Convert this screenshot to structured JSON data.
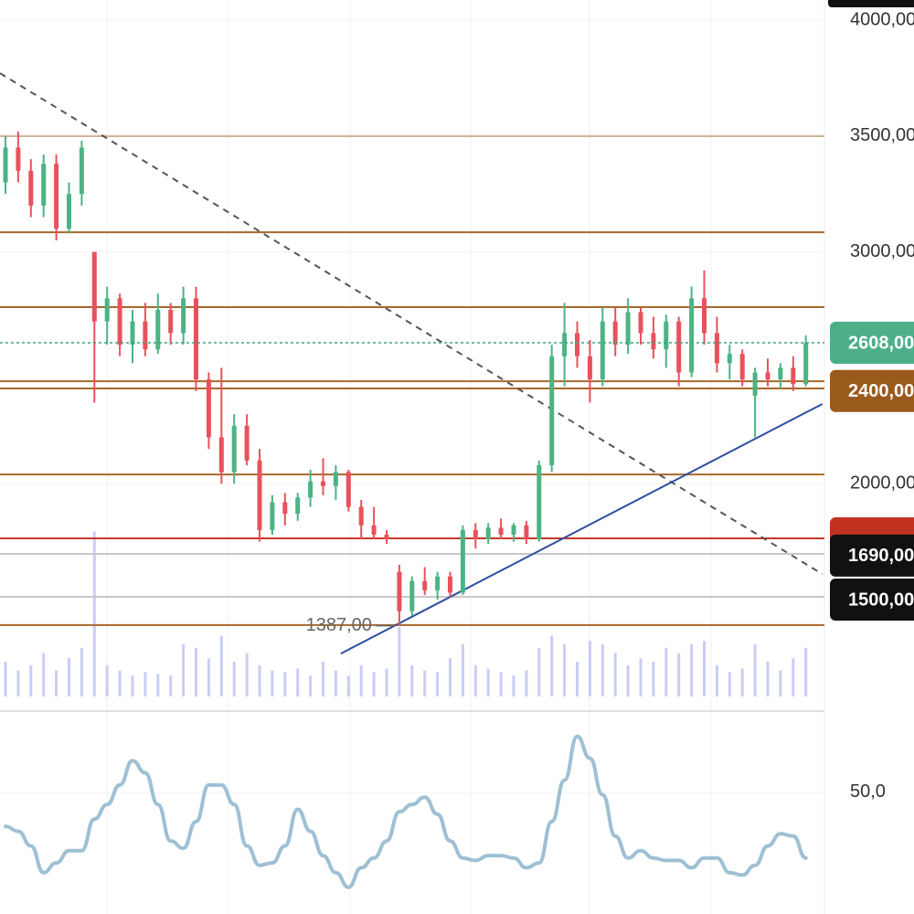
{
  "chart_data": {
    "type": "candlestick",
    "open": [
      3300,
      3450,
      3350,
      3200,
      3380,
      3100,
      3250,
      3000,
      2700,
      2800,
      2600,
      2700,
      2580,
      2750,
      2650,
      2800,
      2450,
      2200,
      2050,
      2250,
      2100,
      1800,
      1920,
      1870,
      1940,
      2010,
      1990,
      2050,
      1900,
      1820,
      1780,
      1620,
      1450,
      1580,
      1540,
      1600,
      1530,
      1800,
      1760,
      1810,
      1780,
      1820,
      1760,
      2080,
      2550,
      2650,
      2550,
      2450,
      2700,
      2600,
      2740,
      2650,
      2580,
      2700,
      2480,
      2800,
      2650,
      2520,
      2560,
      2380,
      2480,
      2450,
      2500,
      2430
    ],
    "high": [
      3500,
      3520,
      3400,
      3420,
      3420,
      3300,
      3480,
      3000,
      2850,
      2820,
      2750,
      2780,
      2820,
      2780,
      2850,
      2850,
      2480,
      2500,
      2300,
      2300,
      2150,
      1950,
      1960,
      1960,
      2060,
      2110,
      2080,
      2060,
      1930,
      1900,
      1800,
      1650,
      1600,
      1640,
      1620,
      1620,
      1820,
      1830,
      1830,
      1850,
      1830,
      1840,
      2100,
      2600,
      2780,
      2700,
      2620,
      2760,
      2760,
      2800,
      2760,
      2720,
      2730,
      2720,
      2850,
      2920,
      2720,
      2600,
      2580,
      2500,
      2540,
      2520,
      2550,
      2640
    ],
    "low": [
      3250,
      3300,
      3150,
      3150,
      3050,
      3080,
      3200,
      2350,
      2600,
      2550,
      2520,
      2550,
      2560,
      2600,
      2600,
      2400,
      2150,
      2000,
      2000,
      2080,
      1750,
      1780,
      1820,
      1840,
      1900,
      1950,
      1930,
      1880,
      1760,
      1760,
      1740,
      1387,
      1430,
      1520,
      1500,
      1510,
      1520,
      1720,
      1740,
      1760,
      1750,
      1740,
      1750,
      2050,
      2420,
      2500,
      2350,
      2420,
      2550,
      2560,
      2600,
      2540,
      2500,
      2420,
      2460,
      2600,
      2480,
      2450,
      2420,
      2200,
      2420,
      2410,
      2400,
      2420
    ],
    "close": [
      3450,
      3350,
      3200,
      3380,
      3100,
      3250,
      3450,
      2700,
      2800,
      2600,
      2700,
      2580,
      2750,
      2650,
      2800,
      2450,
      2200,
      2050,
      2250,
      2100,
      1800,
      1920,
      1870,
      1940,
      2010,
      1990,
      2050,
      1900,
      1820,
      1780,
      1760,
      1450,
      1580,
      1540,
      1600,
      1530,
      1800,
      1760,
      1810,
      1780,
      1820,
      1760,
      2080,
      2550,
      2650,
      2550,
      2450,
      2700,
      2600,
      2740,
      2650,
      2580,
      2700,
      2480,
      2800,
      2650,
      2520,
      2560,
      2450,
      2480,
      2450,
      2500,
      2430,
      2608
    ],
    "up_color": "#4cb384",
    "down_color": "#e8525c",
    "ylim": [
      1082,
      4087
    ],
    "yticks": [
      {
        "value": 4000,
        "label": "4000,00"
      },
      {
        "value": 3500,
        "label": "3500,00"
      },
      {
        "value": 3000,
        "label": "3000,00"
      },
      {
        "value": 2000,
        "label": "2000,00"
      }
    ],
    "levels": [
      {
        "value": 3500,
        "color": "#a8682c"
      },
      {
        "value": 3085,
        "color": "#a8682c"
      },
      {
        "value": 2762,
        "color": "#a8682c"
      },
      {
        "value": 2442,
        "color": "#a8682c"
      },
      {
        "value": 2411,
        "color": "#a8682c"
      },
      {
        "value": 2040,
        "color": "#a8682c"
      },
      {
        "value": 1764,
        "color": "#c8372d"
      },
      {
        "value": 1697,
        "color": "#c8c8c8"
      },
      {
        "value": 1512,
        "color": "#c8c8c8"
      },
      {
        "value": 1390,
        "color": "#a8682c"
      }
    ],
    "last_price": {
      "value": 2608,
      "color": "#3fa37a"
    },
    "price_labels": [
      {
        "value": 2608,
        "label": "2608,00",
        "color": "#4caf8a"
      },
      {
        "value": 2400,
        "label": "2400,00",
        "color": "#9a5a1c"
      },
      {
        "value": 1764,
        "color": "#c0321f"
      },
      {
        "value": 1690,
        "label": "1690,00",
        "color": "#111111"
      },
      {
        "value": 1500,
        "label": "1500,00",
        "color": "#111111"
      }
    ],
    "annotation": {
      "text": "1387,00",
      "value": 1387,
      "index": 31
    },
    "trendlines": [
      {
        "from": [
          -0.43,
          3771
        ],
        "to": [
          64.3,
          1610
        ],
        "dashed": true,
        "color": "#555555"
      },
      {
        "from": [
          26.4,
          1267
        ],
        "to": [
          64.3,
          2344
        ],
        "dashed": false,
        "color": "#2f4fa0"
      }
    ],
    "volume": {
      "color": "#c9cdf5",
      "lim": [
        0,
        100
      ],
      "values": [
        20,
        15,
        18,
        25,
        15,
        22,
        28,
        95,
        18,
        15,
        12,
        14,
        13,
        12,
        30,
        28,
        22,
        35,
        20,
        25,
        18,
        15,
        14,
        16,
        12,
        20,
        15,
        12,
        18,
        14,
        16,
        40,
        18,
        15,
        14,
        22,
        30,
        18,
        16,
        14,
        12,
        15,
        28,
        35,
        30,
        20,
        32,
        30,
        25,
        18,
        22,
        20,
        28,
        25,
        30,
        32,
        18,
        14,
        16,
        30,
        20,
        15,
        22,
        28
      ]
    },
    "oscillator": {
      "color": "#9ec0d4",
      "ylim": [
        0,
        80
      ],
      "yticks": [
        {
          "value": 50,
          "label": "50,0"
        }
      ],
      "values": [
        36,
        34,
        28,
        17,
        21,
        26,
        26,
        39,
        45,
        53,
        63,
        58,
        45,
        30,
        27,
        38,
        53,
        53,
        45,
        28,
        20,
        21,
        28,
        43,
        34,
        24,
        17,
        11,
        19,
        23,
        30,
        42,
        45,
        48,
        41,
        30,
        23,
        22,
        24,
        24,
        23,
        19,
        21,
        38,
        55,
        73,
        64,
        49,
        32,
        23,
        26,
        23,
        22,
        22,
        19,
        23,
        23,
        17,
        16,
        20,
        28,
        33,
        32,
        23
      ]
    }
  }
}
